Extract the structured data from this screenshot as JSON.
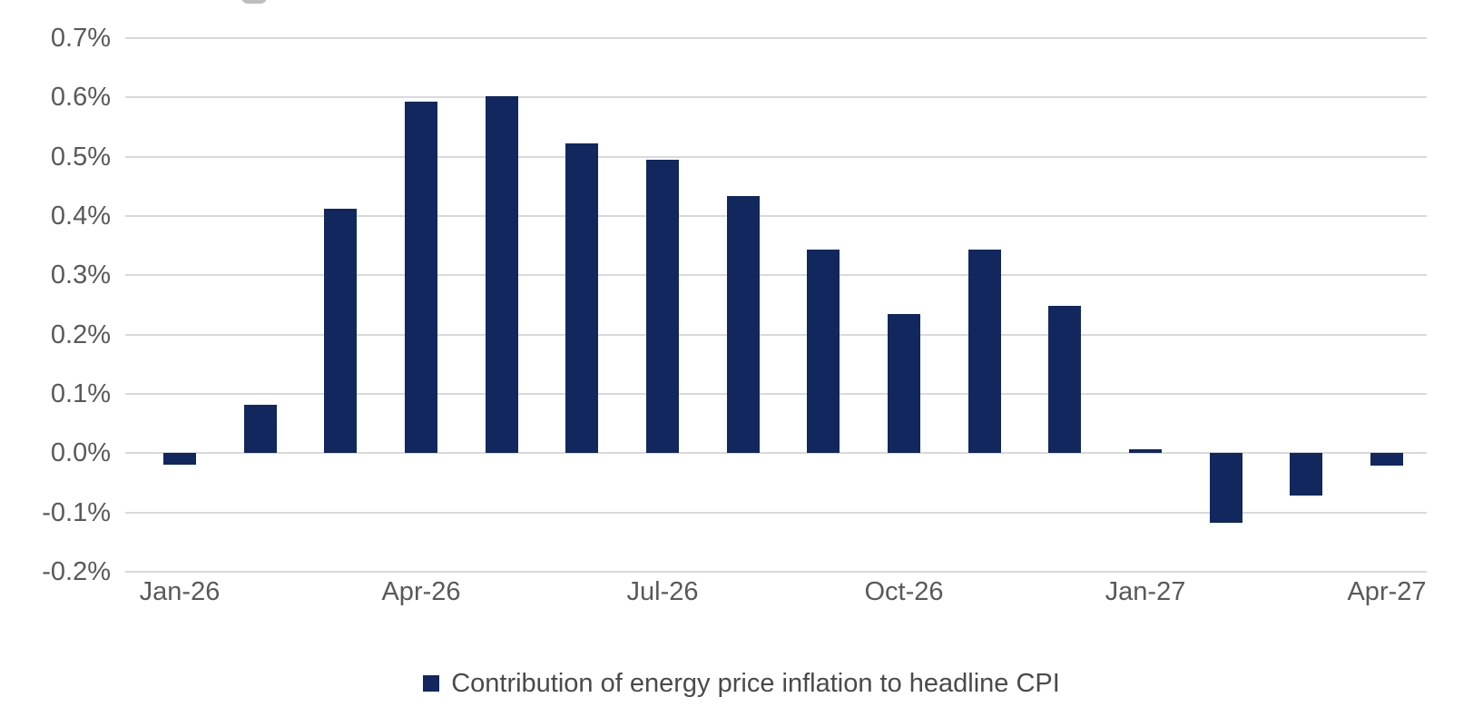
{
  "chart_data": {
    "type": "bar",
    "categories": [
      "Jan-26",
      "Feb-26",
      "Mar-26",
      "Apr-26",
      "May-26",
      "Jun-26",
      "Jul-26",
      "Aug-26",
      "Sep-26",
      "Oct-26",
      "Nov-26",
      "Dec-26",
      "Jan-27",
      "Feb-27",
      "Mar-27",
      "Apr-27"
    ],
    "values": [
      -0.02,
      0.082,
      0.413,
      0.593,
      0.602,
      0.523,
      0.495,
      0.434,
      0.344,
      0.235,
      0.343,
      0.248,
      0.006,
      -0.118,
      -0.072,
      -0.021
    ],
    "series": [
      {
        "name": "Contribution of energy price inflation to headline CPI",
        "values": [
          -0.02,
          0.082,
          0.413,
          0.593,
          0.602,
          0.523,
          0.495,
          0.434,
          0.344,
          0.235,
          0.343,
          0.248,
          0.006,
          -0.118,
          -0.072,
          -0.021
        ]
      }
    ],
    "legend": "Contribution of energy price inflation to headline CPI",
    "legend_position": "bottom",
    "x_tick_labels": [
      "Jan-26",
      "Apr-26",
      "Jul-26",
      "Oct-26",
      "Jan-27",
      "Apr-27"
    ],
    "x_tick_every": 3,
    "y_ticks": [
      {
        "value": 0.7,
        "label": "0.7%"
      },
      {
        "value": 0.6,
        "label": "0.6%"
      },
      {
        "value": 0.5,
        "label": "0.5%"
      },
      {
        "value": 0.4,
        "label": "0.4%"
      },
      {
        "value": 0.3,
        "label": "0.3%"
      },
      {
        "value": 0.2,
        "label": "0.2%"
      },
      {
        "value": 0.1,
        "label": "0.1%"
      },
      {
        "value": 0.0,
        "label": "0.0%"
      },
      {
        "value": -0.1,
        "label": "-0.1%"
      },
      {
        "value": -0.2,
        "label": "-0.2%"
      }
    ],
    "ylim": [
      -0.2,
      0.7
    ],
    "grid": true,
    "colors": {
      "bar": "#12275E",
      "gridline": "#D9D9D9",
      "axis_label": "#595959",
      "legend_text": "#4A4A4A"
    }
  }
}
